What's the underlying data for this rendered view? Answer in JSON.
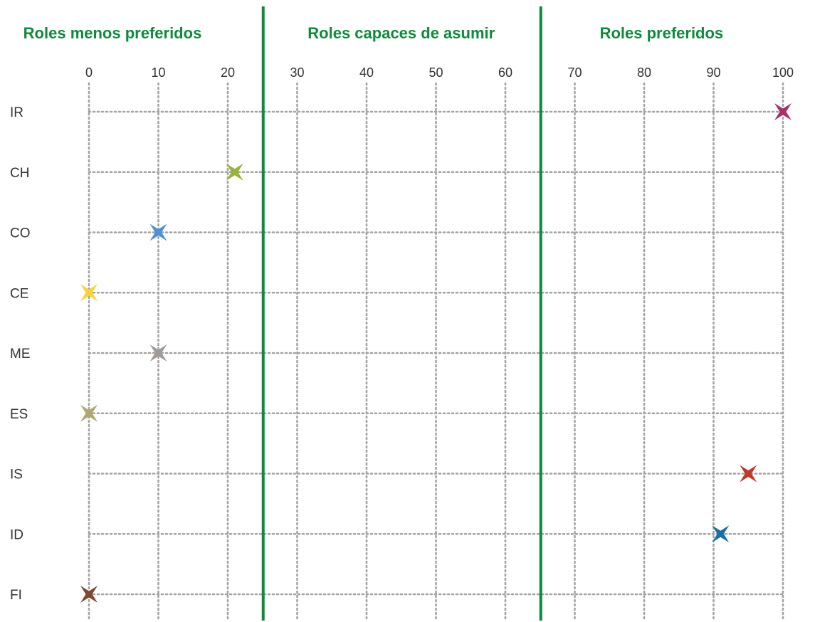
{
  "chart_data": {
    "type": "scatter",
    "title": "",
    "xlabel": "",
    "ylabel": "",
    "xlim": [
      0,
      100
    ],
    "x_ticks": [
      "0",
      "10",
      "20",
      "30",
      "40",
      "50",
      "60",
      "70",
      "80",
      "90",
      "100"
    ],
    "x_tick_values": [
      0,
      10,
      20,
      30,
      40,
      50,
      60,
      70,
      80,
      90,
      100
    ],
    "grid": true,
    "grid_style": "dotted",
    "marker": "four-point-star",
    "accent_color": "#0f8a3c",
    "zones": [
      {
        "label": "Roles menos preferidos",
        "from": 0,
        "to": 25
      },
      {
        "label": "Roles capaces de asumir",
        "from": 25,
        "to": 65
      },
      {
        "label": "Roles preferidos",
        "from": 65,
        "to": 100
      }
    ],
    "zone_boundaries": [
      25,
      65
    ],
    "categories": [
      "IR",
      "CH",
      "CO",
      "CE",
      "ME",
      "ES",
      "IS",
      "ID",
      "FI"
    ],
    "points": [
      {
        "category": "IR",
        "x": 100,
        "color": "#a8306d"
      },
      {
        "category": "CH",
        "x": 21,
        "color": "#98b33a"
      },
      {
        "category": "CO",
        "x": 10,
        "color": "#4f92d1"
      },
      {
        "category": "CE",
        "x": 0,
        "color": "#f7d43c"
      },
      {
        "category": "ME",
        "x": 10,
        "color": "#a29a96"
      },
      {
        "category": "ES",
        "x": 0,
        "color": "#b0a873"
      },
      {
        "category": "IS",
        "x": 95,
        "color": "#c0392b"
      },
      {
        "category": "ID",
        "x": 91,
        "color": "#1a6fa3"
      },
      {
        "category": "FI",
        "x": 0,
        "color": "#7e4a2f"
      }
    ]
  }
}
